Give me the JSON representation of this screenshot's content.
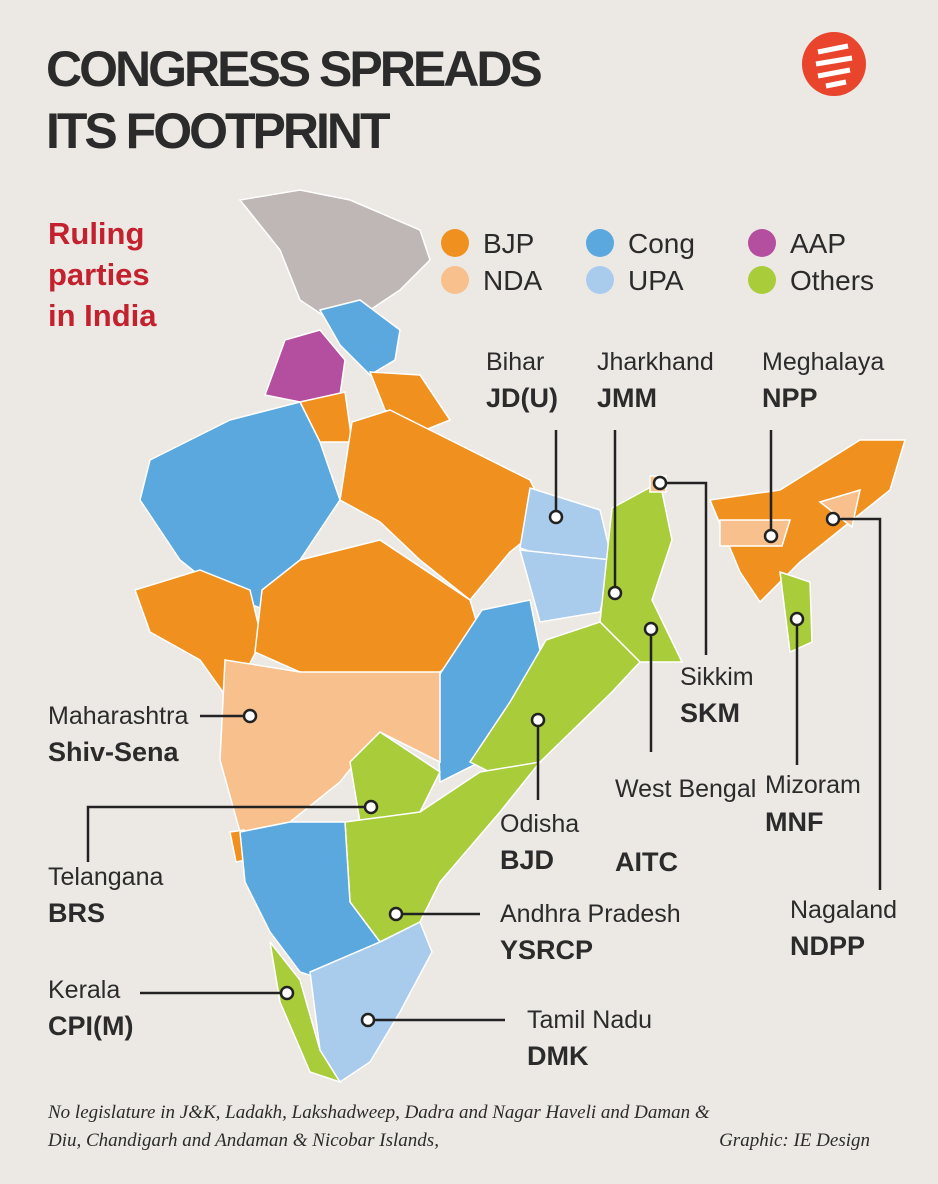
{
  "header": {
    "title_lines": [
      "CONGRESS SPREADS",
      "ITS FOOTPRINT"
    ]
  },
  "subtitle_lines": [
    "Ruling",
    "parties",
    "in India"
  ],
  "legend": [
    {
      "name": "BJP",
      "color": "#f0901f"
    },
    {
      "name": "NDA",
      "color": "#f8c08c"
    },
    {
      "name": "Cong",
      "color": "#5aa8de"
    },
    {
      "name": "UPA",
      "color": "#a9cbec"
    },
    {
      "name": "AAP",
      "color": "#b44e9e"
    },
    {
      "name": "Others",
      "color": "#a8cc3a"
    }
  ],
  "labels": [
    {
      "state": "Bihar",
      "party": "JD(U)"
    },
    {
      "state": "Jharkhand",
      "party": "JMM"
    },
    {
      "state": "Meghalaya",
      "party": "NPP"
    },
    {
      "state": "Maharashtra",
      "party": "Shiv-Sena"
    },
    {
      "state": "Sikkim",
      "party": "SKM"
    },
    {
      "state": "Odisha",
      "party": "BJD"
    },
    {
      "state": "West Bengal",
      "party": "AITC"
    },
    {
      "state": "Mizoram",
      "party": "MNF"
    },
    {
      "state": "Telangana",
      "party": "BRS"
    },
    {
      "state": "Andhra Pradesh",
      "party": "YSRCP"
    },
    {
      "state": "Nagaland",
      "party": "NDPP"
    },
    {
      "state": "Kerala",
      "party": "CPI(M)"
    },
    {
      "state": "Tamil Nadu",
      "party": "DMK"
    }
  ],
  "footnote_lines": [
    "No legislature in J&K, Ladakh, Lakshadweep, Dadra and Nagar Haveli and Daman &",
    "Diu, Chandigarh and Andaman & Nicobar Islands,"
  ],
  "credit": "Graphic: IE Design"
}
